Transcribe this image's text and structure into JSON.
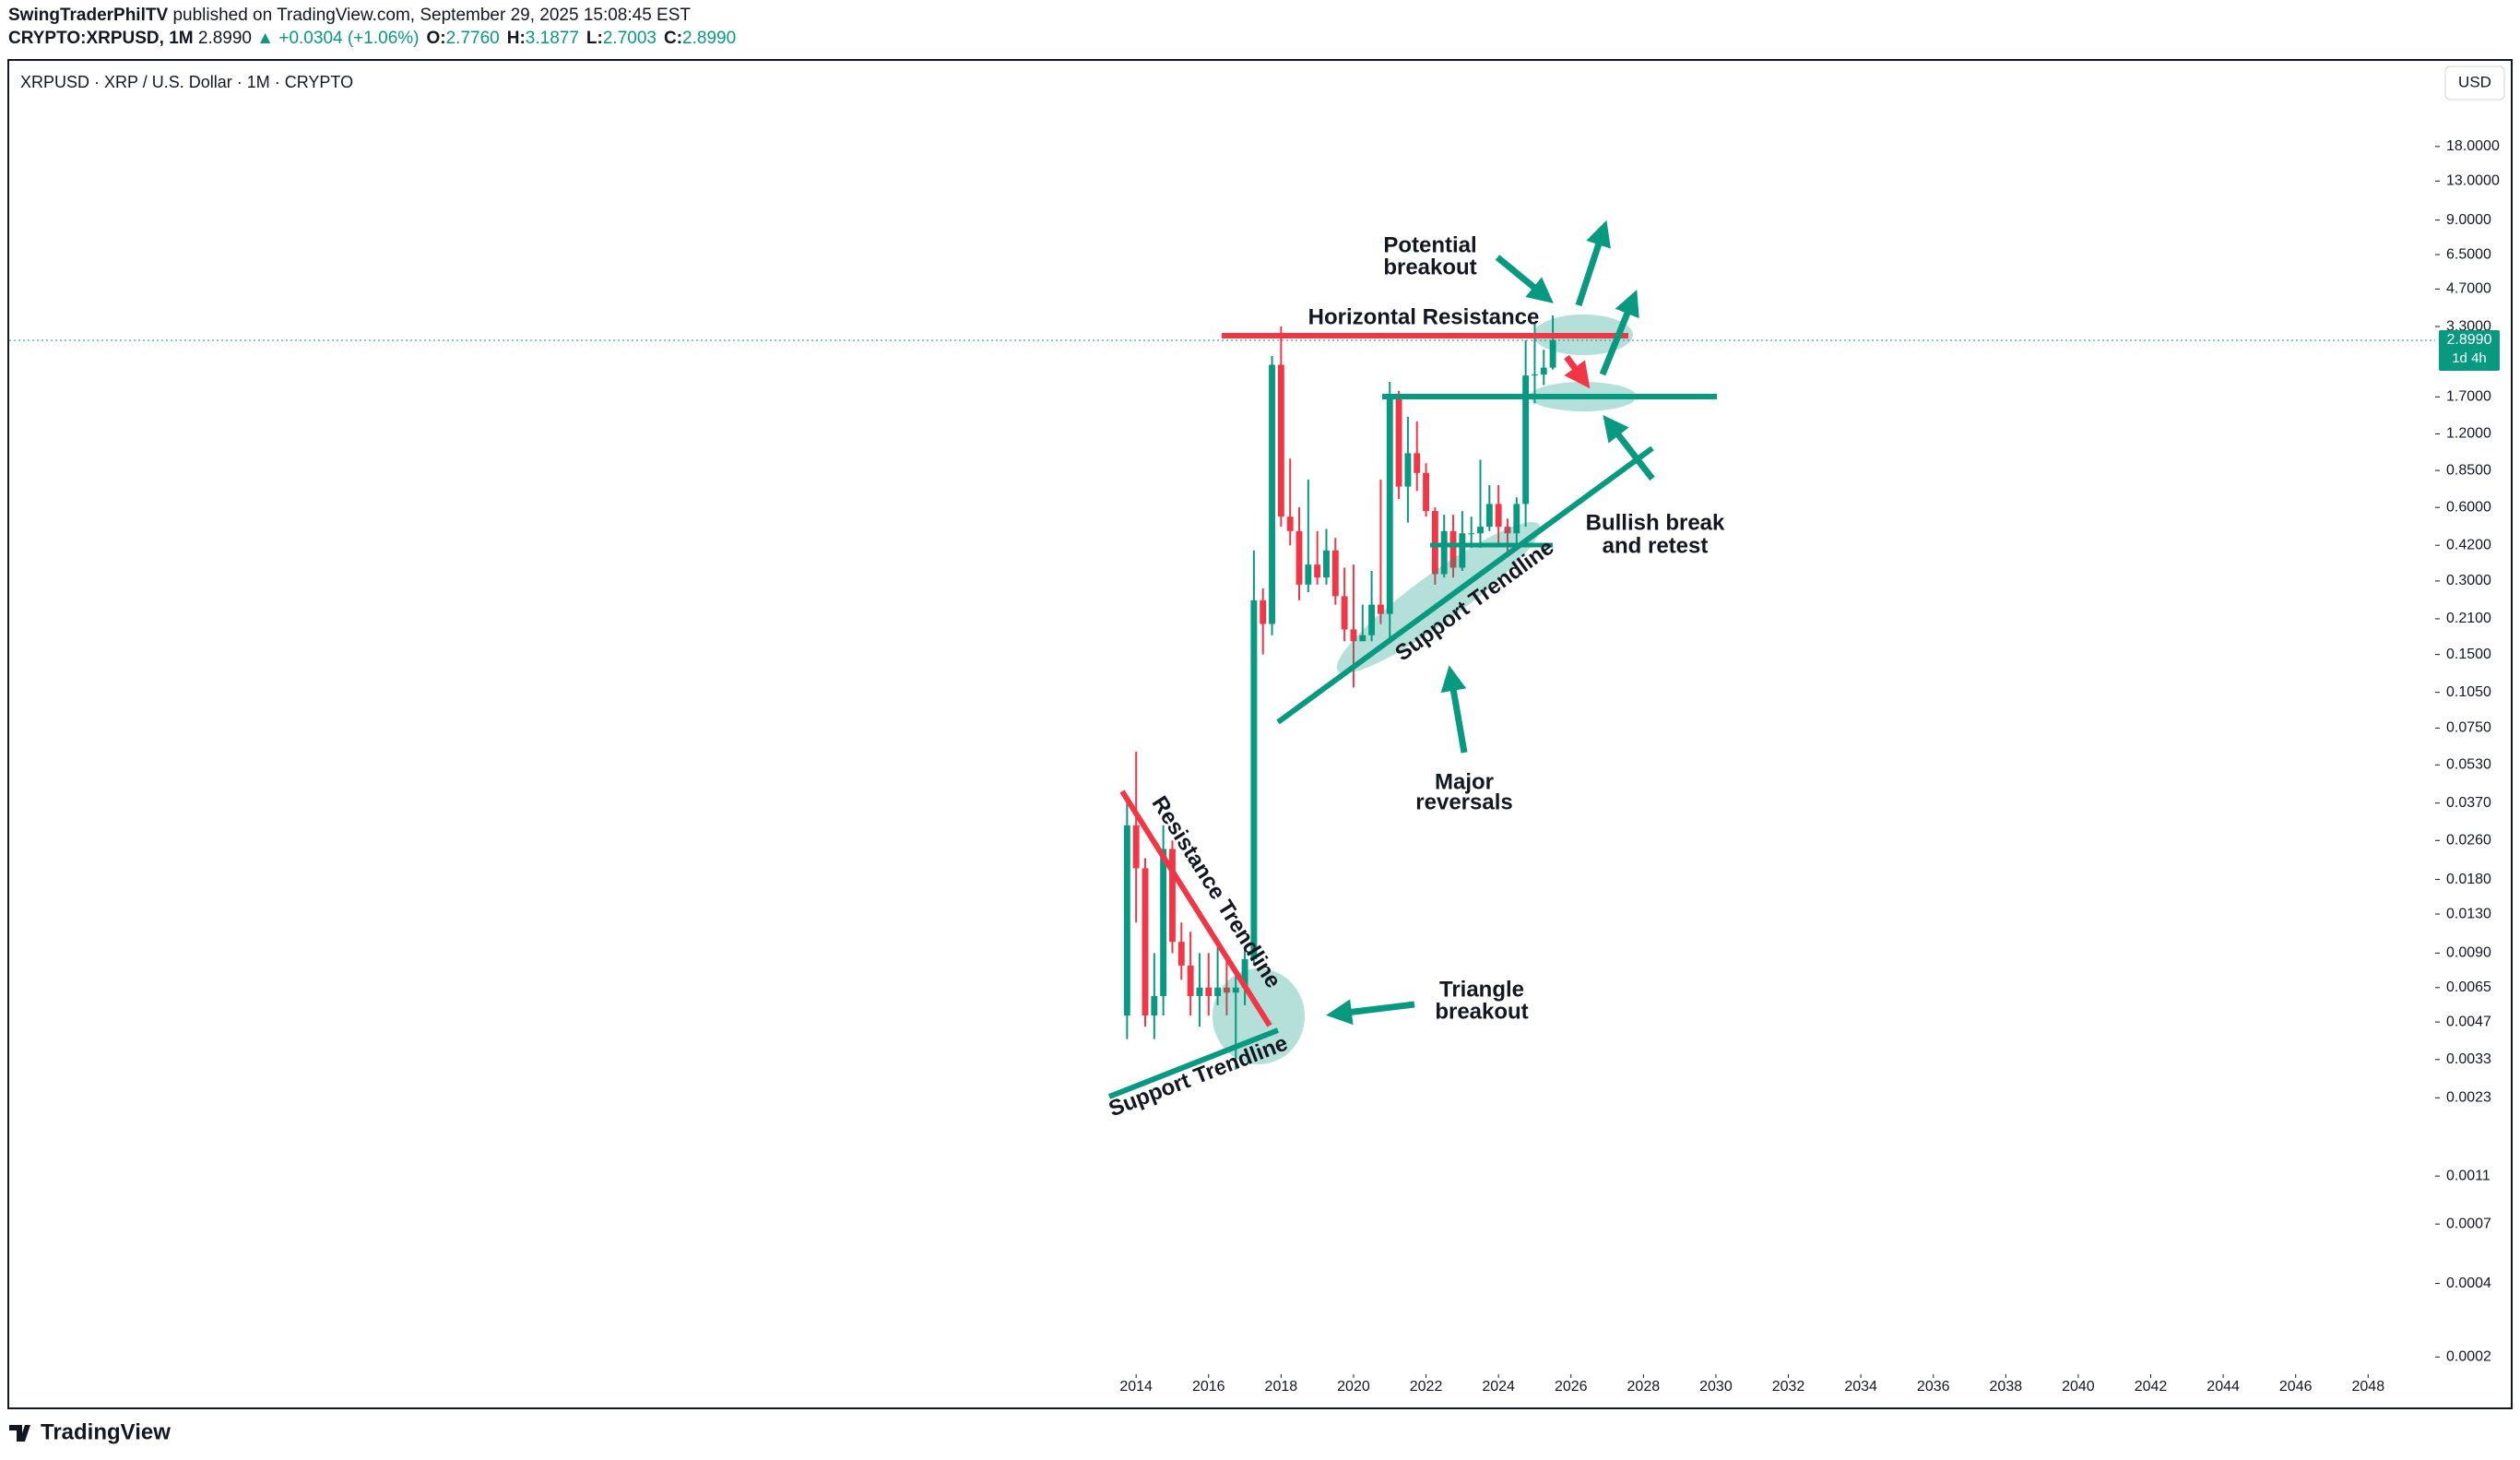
{
  "header": {
    "author": "SwingTraderPhilTV",
    "published": "published on TradingView.com, September 29, 2025 15:08:45 EST",
    "symbol": "CRYPTO:XRPUSD, 1M",
    "price": "2.8990",
    "change": "▲ +0.0304 (+1.06%)",
    "ohlc": [
      {
        "k": "O:",
        "v": "2.7760"
      },
      {
        "k": "H:",
        "v": "3.1877"
      },
      {
        "k": "L:",
        "v": "2.7003"
      },
      {
        "k": "C:",
        "v": "2.8990"
      }
    ]
  },
  "footer": {
    "brand": "TradingView"
  },
  "chart_data": {
    "type": "candlestick",
    "title": "XRPUSD · XRP / U.S. Dollar · 1M · CRYPTO",
    "currency": "USD",
    "log_scale": true,
    "grid": false,
    "up_color": "#089981",
    "down_color": "#f23645",
    "xlim": [
      1982.9,
      2049.85
    ],
    "ylim": [
      0.00017,
      40.7
    ],
    "xticks": [
      2014,
      2016,
      2018,
      2020,
      2022,
      2024,
      2026,
      2028,
      2030,
      2032,
      2034,
      2036,
      2038,
      2040,
      2042,
      2044,
      2046,
      2048
    ],
    "yticks": [
      {
        "value": 18,
        "label": "18.0000"
      },
      {
        "value": 13,
        "label": "13.0000"
      },
      {
        "value": 9,
        "label": "9.0000"
      },
      {
        "value": 6.5,
        "label": "6.5000"
      },
      {
        "value": 4.7,
        "label": "4.7000"
      },
      {
        "value": 3.3,
        "label": "3.3000"
      },
      {
        "value": 1.7,
        "label": "1.7000"
      },
      {
        "value": 1.2,
        "label": "1.2000"
      },
      {
        "value": 0.85,
        "label": "0.8500"
      },
      {
        "value": 0.6,
        "label": "0.6000"
      },
      {
        "value": 0.42,
        "label": "0.4200"
      },
      {
        "value": 0.3,
        "label": "0.3000"
      },
      {
        "value": 0.21,
        "label": "0.2100"
      },
      {
        "value": 0.15,
        "label": "0.1500"
      },
      {
        "value": 0.105,
        "label": "0.1050"
      },
      {
        "value": 0.075,
        "label": "0.0750"
      },
      {
        "value": 0.053,
        "label": "0.0530"
      },
      {
        "value": 0.037,
        "label": "0.0370"
      },
      {
        "value": 0.026,
        "label": "0.0260"
      },
      {
        "value": 0.018,
        "label": "0.0180"
      },
      {
        "value": 0.013,
        "label": "0.0130"
      },
      {
        "value": 0.009,
        "label": "0.0090"
      },
      {
        "value": 0.0065,
        "label": "0.0065"
      },
      {
        "value": 0.0047,
        "label": "0.0047"
      },
      {
        "value": 0.0033,
        "label": "0.0033"
      },
      {
        "value": 0.0023,
        "label": "0.0023"
      },
      {
        "value": 0.0011,
        "label": "0.0011"
      },
      {
        "value": 0.0007,
        "label": "0.0007"
      },
      {
        "value": 0.0004,
        "label": "0.0004"
      },
      {
        "value": 0.0002,
        "label": "0.0002"
      }
    ],
    "last_price": {
      "value": 2.899,
      "label": "2.8990"
    },
    "countdown": "1d 4h",
    "x": [
      2013.75,
      2014.0,
      2014.25,
      2014.5,
      2014.75,
      2015.0,
      2015.25,
      2015.5,
      2015.75,
      2016.0,
      2016.25,
      2016.5,
      2016.75,
      2017.0,
      2017.25,
      2017.5,
      2017.75,
      2018.0,
      2018.25,
      2018.5,
      2018.75,
      2019.0,
      2019.25,
      2019.5,
      2019.75,
      2020.0,
      2020.25,
      2020.5,
      2020.75,
      2021.0,
      2021.25,
      2021.5,
      2021.75,
      2022.0,
      2022.25,
      2022.5,
      2022.75,
      2023.0,
      2023.25,
      2023.5,
      2023.75,
      2024.0,
      2024.25,
      2024.5,
      2024.75,
      2025.0,
      2025.25,
      2025.5
    ],
    "open": [
      0.005,
      0.03,
      0.02,
      0.005,
      0.006,
      0.024,
      0.01,
      0.008,
      0.006,
      0.0065,
      0.006,
      0.0065,
      0.0062,
      0.0065,
      0.0085,
      0.25,
      0.2,
      2.3,
      0.55,
      0.48,
      0.29,
      0.35,
      0.31,
      0.4,
      0.26,
      0.19,
      0.17,
      0.18,
      0.24,
      0.22,
      1.7,
      0.73,
      1.0,
      0.83,
      0.58,
      0.32,
      0.48,
      0.34,
      0.47,
      0.47,
      0.5,
      0.62,
      0.5,
      0.47,
      0.62,
      2.08,
      2.1,
      2.24
    ],
    "high": [
      0.04,
      0.06,
      0.022,
      0.009,
      0.03,
      0.026,
      0.012,
      0.011,
      0.009,
      0.009,
      0.0095,
      0.0085,
      0.0075,
      0.0095,
      0.4,
      0.28,
      2.5,
      3.3,
      0.95,
      0.6,
      0.78,
      0.48,
      0.49,
      0.45,
      0.34,
      0.35,
      0.24,
      0.33,
      0.78,
      1.96,
      1.8,
      1.41,
      1.35,
      0.91,
      0.6,
      0.56,
      0.56,
      0.58,
      0.55,
      0.94,
      0.74,
      0.74,
      0.54,
      0.66,
      2.9,
      3.4,
      2.65,
      3.66
    ],
    "low": [
      0.004,
      0.012,
      0.0045,
      0.004,
      0.005,
      0.009,
      0.007,
      0.005,
      0.0045,
      0.005,
      0.0055,
      0.005,
      0.003,
      0.0055,
      0.008,
      0.15,
      0.18,
      0.5,
      0.42,
      0.25,
      0.27,
      0.29,
      0.29,
      0.24,
      0.17,
      0.11,
      0.17,
      0.17,
      0.2,
      0.17,
      0.65,
      0.52,
      0.7,
      0.55,
      0.29,
      0.31,
      0.31,
      0.33,
      0.41,
      0.41,
      0.48,
      0.43,
      0.38,
      0.43,
      0.5,
      1.6,
      1.9,
      2.2
    ],
    "close": [
      0.03,
      0.02,
      0.005,
      0.006,
      0.024,
      0.01,
      0.008,
      0.006,
      0.0065,
      0.006,
      0.0065,
      0.0062,
      0.0065,
      0.0085,
      0.25,
      0.2,
      2.3,
      0.55,
      0.48,
      0.29,
      0.35,
      0.31,
      0.4,
      0.26,
      0.19,
      0.17,
      0.18,
      0.24,
      0.22,
      1.7,
      0.73,
      1.0,
      0.83,
      0.58,
      0.32,
      0.48,
      0.34,
      0.47,
      0.47,
      0.5,
      0.62,
      0.5,
      0.47,
      0.62,
      2.08,
      2.1,
      2.24,
      2.9
    ],
    "annotations": {
      "potential_breakout": [
        "Potential",
        "breakout"
      ],
      "horizontal_resistance": "Horizontal Resistance",
      "bullish_break": [
        "Bullish break",
        "and retest"
      ],
      "support_upper": "Support Trendline",
      "major_reversals": [
        "Major",
        "reversals"
      ],
      "resistance_trendline": "Resistance Trendline",
      "support_lower": "Support Trendline",
      "triangle_breakout": [
        "Triangle",
        "breakout"
      ]
    }
  }
}
